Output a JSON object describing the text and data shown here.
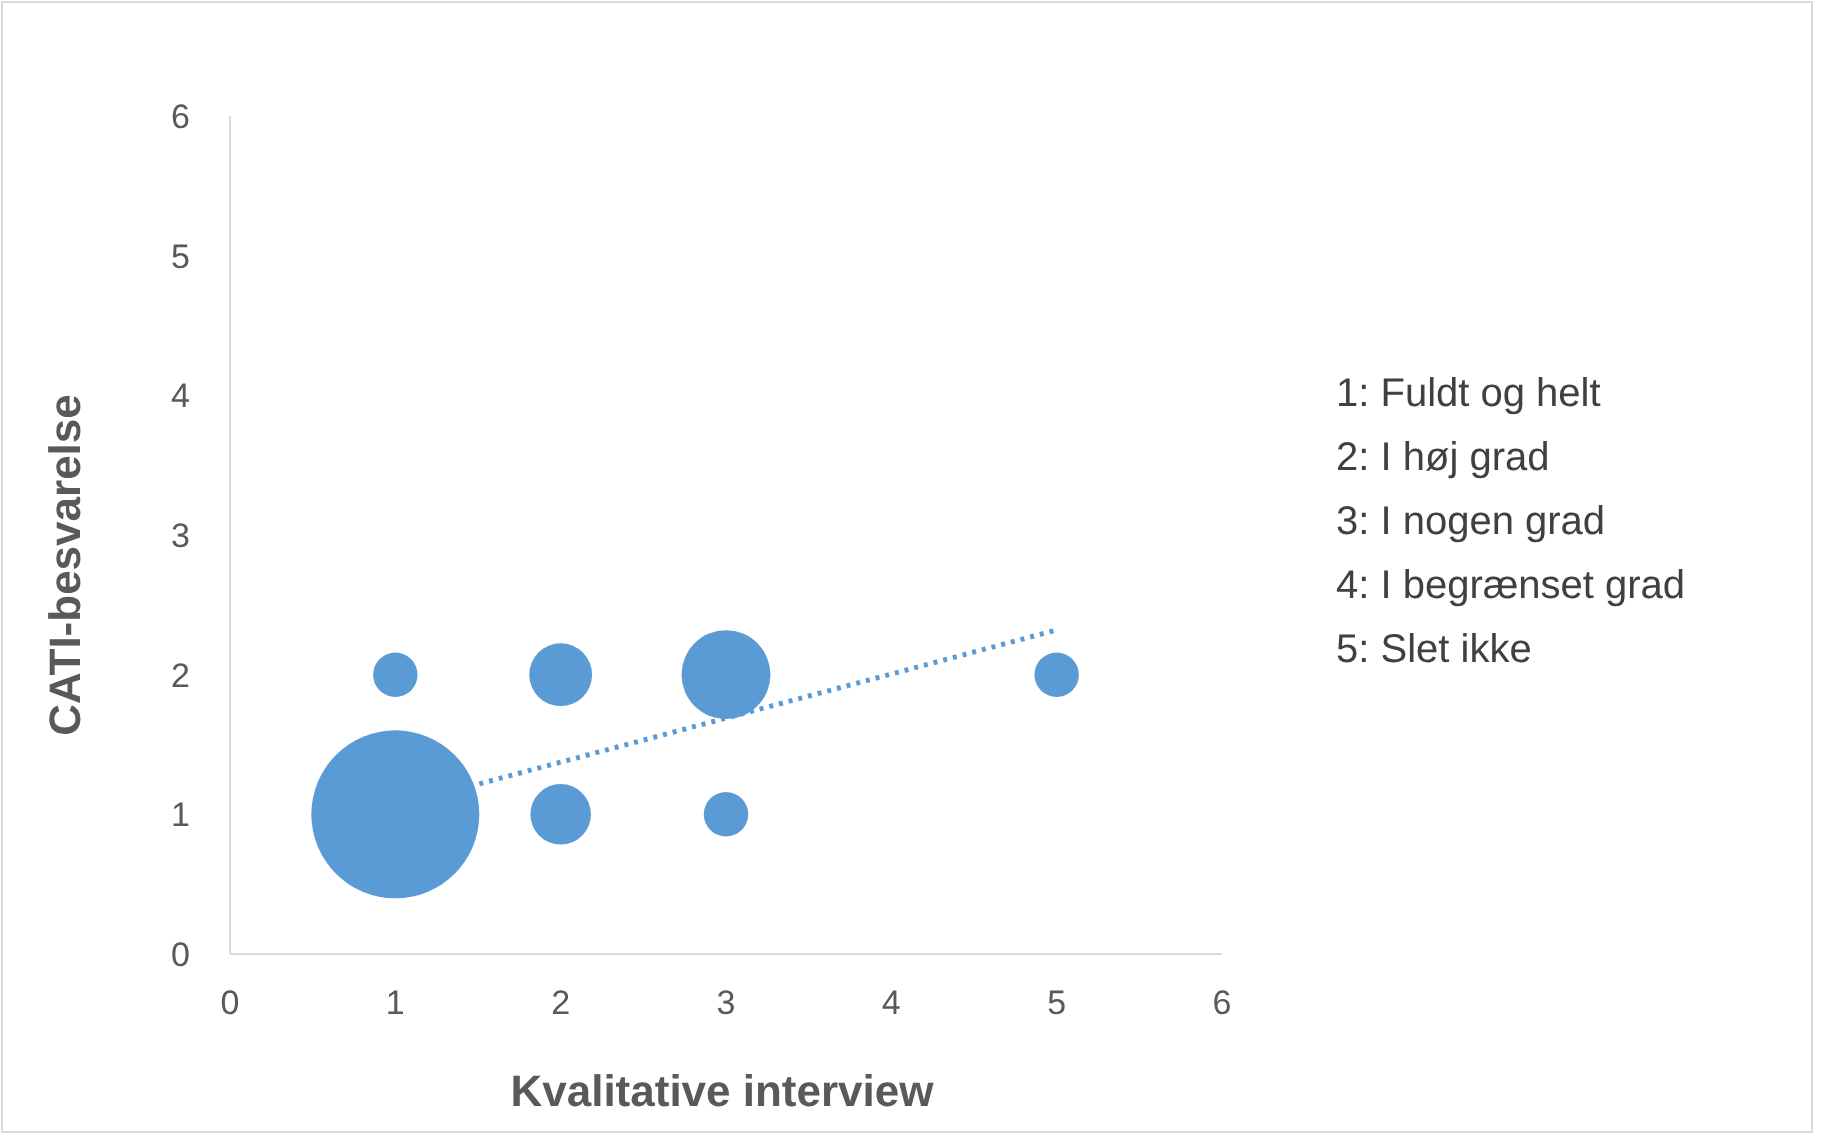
{
  "chart_data": {
    "type": "bubble",
    "xlabel": "Kvalitative interview",
    "ylabel": "CATI-besvarelse",
    "xlim": [
      0,
      6
    ],
    "xticks": [
      0,
      1,
      2,
      3,
      4,
      5,
      6
    ],
    "ylim": [
      0,
      6
    ],
    "yticks": [
      0,
      1,
      2,
      3,
      4,
      5,
      6
    ],
    "series": [
      {
        "color": "#5b9bd5",
        "x": [
          1,
          1,
          2,
          2,
          3,
          3,
          5
        ],
        "values": [
          1,
          2,
          2,
          1,
          2,
          1,
          2
        ],
        "sizes": [
          1,
          0.07,
          0.14,
          0.13,
          0.28,
          0.07,
          0.07
        ]
      },
      {
        "type": "line",
        "color": "#5b9bd5",
        "line_style": "dotted",
        "x": [
          1.45,
          5
        ],
        "values": [
          1.2,
          2.32
        ]
      }
    ],
    "annotations": [
      "1: Fuldt og helt",
      "2: I høj grad",
      "3: I nogen grad",
      "4: I begrænset grad",
      "5: Slet ikke"
    ]
  }
}
